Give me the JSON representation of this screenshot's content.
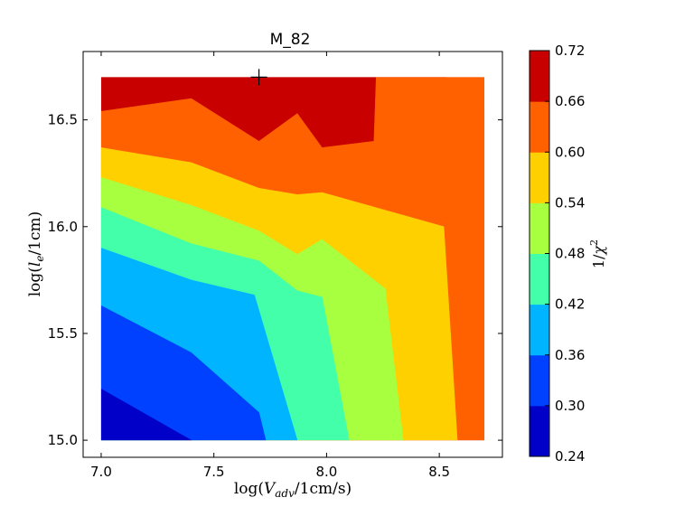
{
  "chart_data": {
    "type": "heatmap",
    "subtype": "filled-contour",
    "title": "M_82",
    "xlabel": {
      "prefix": "log(",
      "var": "V",
      "sub": "adv",
      "suffix": "/1cm/s)"
    },
    "ylabel": {
      "prefix": "log(",
      "var": "l",
      "sub": "e",
      "suffix": "/1cm)"
    },
    "xlim": [
      6.92,
      8.78
    ],
    "ylim": [
      14.92,
      16.82
    ],
    "data_extent": {
      "x": [
        7.0,
        8.7
      ],
      "y": [
        15.0,
        16.7
      ]
    },
    "xticks": [
      "7.0",
      "7.5",
      "8.0",
      "8.5"
    ],
    "yticks": [
      "15.0",
      "15.5",
      "16.0",
      "16.5"
    ],
    "marker": {
      "symbol": "+",
      "x": 7.7,
      "y": 16.7
    },
    "colorbar": {
      "label": {
        "prefix": "1/",
        "var": "χ",
        "sup": "2"
      },
      "levels": [
        "0.24",
        "0.30",
        "0.36",
        "0.42",
        "0.48",
        "0.54",
        "0.60",
        "0.66",
        "0.72"
      ],
      "colors": [
        "#0000c8",
        "#0040ff",
        "#00b4ff",
        "#44ffaa",
        "#a8ff40",
        "#ffd000",
        "#ff6000",
        "#c80000"
      ]
    },
    "contour_boundaries": [
      [
        [
          7.0,
          15.24
        ],
        [
          7.4,
          15.0
        ]
      ],
      [
        [
          7.0,
          15.63
        ],
        [
          7.4,
          15.41
        ],
        [
          7.7,
          15.13
        ],
        [
          7.73,
          15.0
        ]
      ],
      [
        [
          7.0,
          15.9
        ],
        [
          7.4,
          15.75
        ],
        [
          7.68,
          15.68
        ],
        [
          7.87,
          15.0
        ]
      ],
      [
        [
          7.0,
          16.09
        ],
        [
          7.4,
          15.92
        ],
        [
          7.7,
          15.84
        ],
        [
          7.87,
          15.7
        ],
        [
          7.98,
          15.67
        ],
        [
          8.1,
          15.0
        ]
      ],
      [
        [
          7.0,
          16.23
        ],
        [
          7.4,
          16.1
        ],
        [
          7.7,
          15.98
        ],
        [
          7.87,
          15.87
        ],
        [
          7.98,
          15.94
        ],
        [
          8.26,
          15.71
        ],
        [
          8.34,
          15.0
        ]
      ],
      [
        [
          7.0,
          16.37
        ],
        [
          7.4,
          16.3
        ],
        [
          7.7,
          16.18
        ],
        [
          7.87,
          16.15
        ],
        [
          7.98,
          16.16
        ],
        [
          8.52,
          16.0
        ],
        [
          8.58,
          15.0
        ]
      ],
      [
        [
          7.0,
          16.54
        ],
        [
          7.4,
          16.6
        ],
        [
          7.7,
          16.4
        ],
        [
          7.87,
          16.53
        ],
        [
          7.98,
          16.37
        ],
        [
          8.21,
          16.4
        ],
        [
          8.22,
          16.7
        ]
      ],
      [
        [
          8.53,
          16.7
        ],
        [
          8.7,
          16.55
        ]
      ]
    ]
  }
}
